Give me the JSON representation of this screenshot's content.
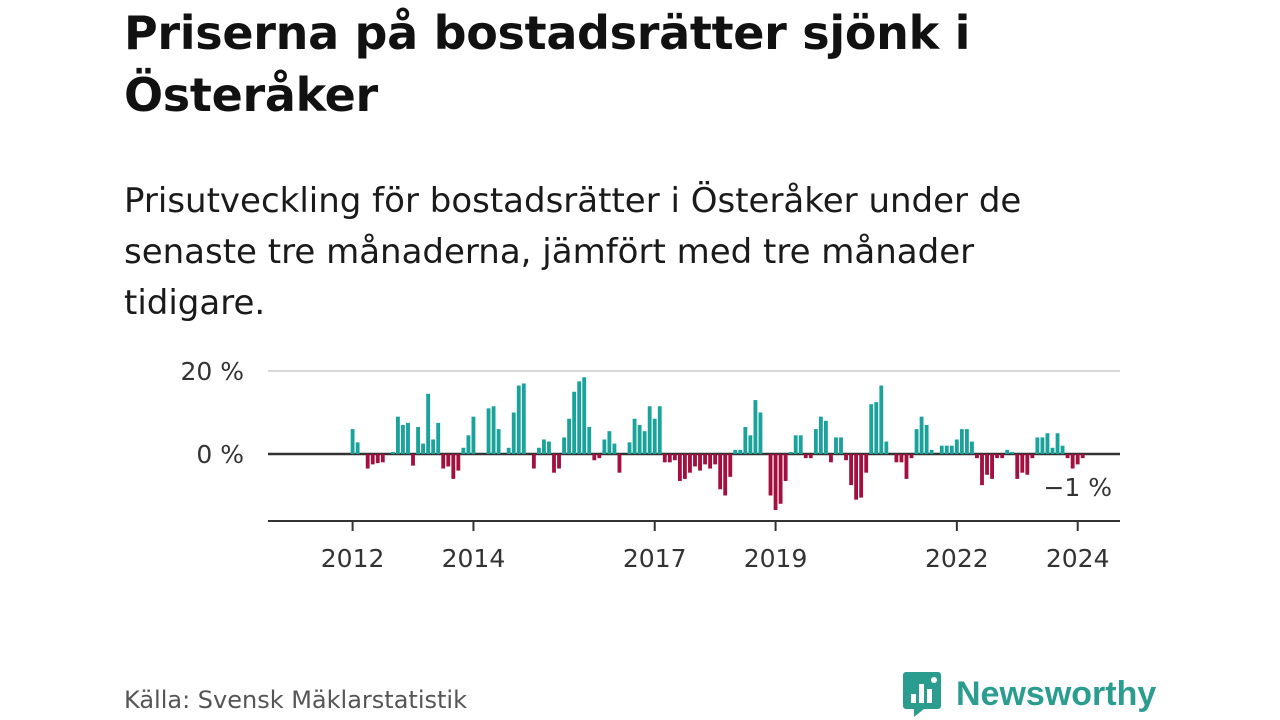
{
  "title": "Priserna på bostadsrätter sjönk i Österåker",
  "subtitle": "Prisutveckling för bostadsrätter i Österåker under de senaste tre månaderna, jämfört med tre månader tidigare.",
  "source": "Källa: Svensk Mäklarstatistik",
  "brand": "Newsworthy",
  "colors": {
    "positive": "#1aa39b",
    "negative": "#a3103f",
    "grid": "#d8d8d8",
    "axis": "#333333",
    "brand": "#2a9d8f"
  },
  "chart_data": {
    "type": "bar",
    "unit": "%",
    "y_ticks": [
      {
        "value": 20,
        "label": "20 %"
      },
      {
        "value": 0,
        "label": "0 %"
      }
    ],
    "ylim": [
      -15,
      20
    ],
    "x_ticks": [
      {
        "value": 2012,
        "label": "2012"
      },
      {
        "value": 2014,
        "label": "2014"
      },
      {
        "value": 2017,
        "label": "2017"
      },
      {
        "value": 2019,
        "label": "2019"
      },
      {
        "value": 2022,
        "label": "2022"
      },
      {
        "value": 2024,
        "label": "2024"
      }
    ],
    "xlim": [
      2010.6,
      2024.7
    ],
    "last_value_label": "−1 %",
    "series": [
      {
        "name": "Prisutveckling",
        "start": 2012.0,
        "step": 0.08333,
        "values": [
          6,
          2.8,
          0,
          -3.5,
          -2.5,
          -2.2,
          -2,
          0,
          0.5,
          9,
          7,
          7.5,
          -2.8,
          6.5,
          2.5,
          14.5,
          3.5,
          7.5,
          -3.5,
          -3,
          -6,
          -4,
          1.5,
          4.5,
          9,
          0,
          0,
          11,
          11.5,
          6,
          0,
          1.5,
          10,
          16.5,
          17,
          0,
          -3.5,
          1.5,
          3.5,
          3,
          -4.5,
          -3.5,
          4,
          8.5,
          15,
          17.5,
          18.5,
          6.5,
          -1.5,
          -1,
          3.5,
          5.5,
          2.5,
          -4.5,
          0,
          2.8,
          8.5,
          7,
          5.5,
          11.5,
          8.5,
          11.5,
          -2,
          -2,
          -1.5,
          -6.5,
          -6,
          -4.5,
          -3,
          -4,
          -2.5,
          -3.5,
          -2.5,
          -8.5,
          -10,
          -5.5,
          1,
          1,
          6.5,
          4.5,
          13,
          10,
          0,
          -10,
          -13.5,
          -12,
          -6.5,
          0.5,
          4.5,
          4.5,
          -1,
          -1,
          6,
          9,
          8,
          -2,
          4,
          4,
          -1.5,
          -7.5,
          -11,
          -10.5,
          -4.5,
          12,
          12.5,
          16.5,
          3,
          0,
          -2,
          -2,
          -6,
          -1,
          6,
          9,
          7,
          1,
          0,
          2,
          2,
          2,
          3.5,
          6,
          6,
          3,
          -1,
          -7.5,
          -5,
          -6,
          -1,
          -1,
          1,
          0.5,
          -6,
          -4.5,
          -5,
          -1,
          4,
          4,
          5,
          1.5,
          5,
          2,
          -1,
          -3.5,
          -2.5,
          -1
        ]
      }
    ]
  }
}
